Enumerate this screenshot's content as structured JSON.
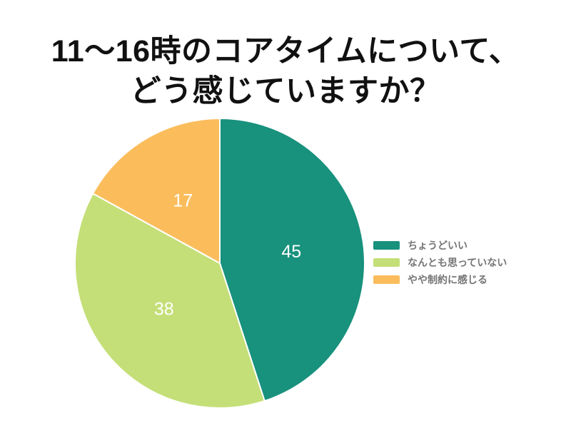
{
  "title": {
    "line1": "11〜16時のコアタイムについて、",
    "line2": "どう感じていますか？"
  },
  "chart_data": {
    "type": "pie",
    "title": "11〜16時のコアタイムについて、どう感じていますか？",
    "labels": [
      "ちょうどいい",
      "なんとも思っていない",
      "やや制約に感じる"
    ],
    "values": [
      45,
      38,
      17
    ],
    "data_labels": [
      "45",
      "38",
      "17"
    ],
    "colors": [
      "#18917D",
      "#C4DF77",
      "#FBBD5C"
    ],
    "slice_border_color": "#ffffff",
    "data_label_color": "#ffffff",
    "start_angle_deg": 0,
    "direction": "clockwise",
    "legend_position": "right",
    "legend_text_color": "#757575",
    "background_color": "#ffffff",
    "title_color": "#111111"
  }
}
